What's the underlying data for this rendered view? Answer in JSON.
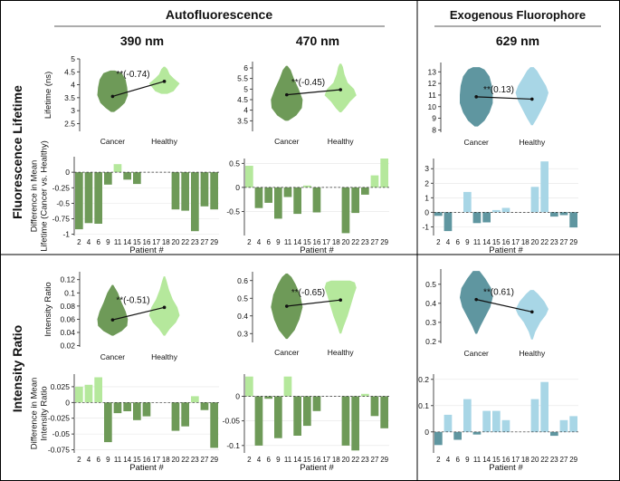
{
  "headers": {
    "auto": "Autofluorescence",
    "exo": "Exogenous Fluorophore",
    "wl390": "390 nm",
    "wl470": "470 nm",
    "wl629": "629 nm",
    "row1": "Fluorescence Lifetime",
    "row2": "Intensity Ratio"
  },
  "colors": {
    "green_dark": "#6e9a58",
    "green_light": "#b5e89c",
    "blue_dark": "#5f96a0",
    "blue_light": "#a8d6e6"
  },
  "chart_data": [
    {
      "id": "v390lt",
      "type": "violin",
      "ylabel": "Lifetime (ns)",
      "ylim": [
        2.2,
        5
      ],
      "yticks": [
        2.5,
        3,
        3.5,
        4,
        4.5,
        5
      ],
      "categories": [
        "Cancer",
        "Healthy"
      ],
      "means": [
        3.55,
        4.13
      ],
      "annotation": "**(-0.74)",
      "palette": "green",
      "shapes": [
        {
          "min": 2.95,
          "max": 4.55,
          "profile": [
            [
              2.95,
              0.1
            ],
            [
              3.1,
              0.45
            ],
            [
              3.3,
              0.8
            ],
            [
              3.6,
              1.0
            ],
            [
              3.9,
              0.95
            ],
            [
              4.2,
              0.85
            ],
            [
              4.45,
              0.6
            ],
            [
              4.55,
              0.15
            ]
          ]
        },
        {
          "min": 3.65,
          "max": 4.7,
          "profile": [
            [
              3.65,
              0.2
            ],
            [
              3.75,
              0.6
            ],
            [
              3.9,
              0.8
            ],
            [
              4.05,
              1.0
            ],
            [
              4.25,
              0.6
            ],
            [
              4.4,
              0.35
            ],
            [
              4.6,
              0.2
            ],
            [
              4.7,
              0.05
            ]
          ]
        }
      ]
    },
    {
      "id": "v470lt",
      "type": "violin",
      "ylabel": "",
      "ylim": [
        3,
        6.3
      ],
      "yticks": [
        3.5,
        4,
        4.5,
        5,
        5.5,
        6
      ],
      "categories": [
        "Cancer",
        "Healthy"
      ],
      "means": [
        4.73,
        4.97
      ],
      "annotation": "**(-0.45)",
      "palette": "green",
      "shapes": [
        {
          "min": 3.5,
          "max": 6.1,
          "profile": [
            [
              3.5,
              0.1
            ],
            [
              3.75,
              0.6
            ],
            [
              4.1,
              0.95
            ],
            [
              4.5,
              1.0
            ],
            [
              5.0,
              0.75
            ],
            [
              5.5,
              0.45
            ],
            [
              5.9,
              0.25
            ],
            [
              6.1,
              0.05
            ]
          ]
        },
        {
          "min": 3.9,
          "max": 6.2,
          "profile": [
            [
              3.9,
              0.05
            ],
            [
              4.1,
              0.3
            ],
            [
              4.4,
              0.6
            ],
            [
              4.7,
              1.0
            ],
            [
              5.0,
              0.85
            ],
            [
              5.3,
              0.45
            ],
            [
              5.7,
              0.25
            ],
            [
              6.05,
              0.15
            ],
            [
              6.2,
              0.05
            ]
          ]
        }
      ]
    },
    {
      "id": "v629lt",
      "type": "violin",
      "ylabel": "",
      "ylim": [
        7.8,
        13.8
      ],
      "yticks": [
        8,
        9,
        10,
        11,
        12,
        13
      ],
      "categories": [
        "Cancer",
        "Healthy"
      ],
      "means": [
        10.85,
        10.65
      ],
      "annotation": "**(0.13)",
      "palette": "blue",
      "shapes": [
        {
          "min": 8.3,
          "max": 13.4,
          "profile": [
            [
              8.3,
              0.1
            ],
            [
              8.8,
              0.5
            ],
            [
              9.5,
              0.8
            ],
            [
              10.3,
              1.0
            ],
            [
              11.0,
              1.0
            ],
            [
              11.8,
              0.95
            ],
            [
              12.6,
              0.8
            ],
            [
              13.2,
              0.5
            ],
            [
              13.4,
              0.2
            ]
          ]
        },
        {
          "min": 8.4,
          "max": 13.4,
          "profile": [
            [
              8.4,
              0.05
            ],
            [
              9.0,
              0.3
            ],
            [
              9.8,
              0.6
            ],
            [
              10.5,
              0.85
            ],
            [
              11.2,
              1.0
            ],
            [
              11.8,
              0.85
            ],
            [
              12.5,
              0.55
            ],
            [
              13.1,
              0.3
            ],
            [
              13.4,
              0.1
            ]
          ]
        }
      ]
    },
    {
      "id": "b390lt",
      "type": "bar",
      "ylabel": [
        "Difference in Mean",
        "Lifetime (Cancer vs. Healthy)"
      ],
      "ylim": [
        -1.02,
        0.25
      ],
      "yticks": [
        -1,
        -0.75,
        -0.5,
        -0.25,
        0
      ],
      "categories": [
        "2",
        "4",
        "6",
        "9",
        "11",
        "14",
        "15",
        "16",
        "17",
        "18",
        "20",
        "22",
        "23",
        "27",
        "29"
      ],
      "values": [
        -0.92,
        -0.82,
        -0.83,
        -0.2,
        0.13,
        -0.12,
        -0.19,
        0,
        0,
        0,
        -0.6,
        -0.62,
        -0.95,
        -0.55,
        -0.6
      ],
      "xlabel": "Patient #",
      "palette": "green"
    },
    {
      "id": "b470lt",
      "type": "bar",
      "ylabel": "",
      "ylim": [
        -1.0,
        0.6
      ],
      "yticks": [
        -0.5,
        0,
        0.5
      ],
      "categories": [
        "2",
        "4",
        "6",
        "9",
        "11",
        "14",
        "15",
        "16",
        "17",
        "18",
        "20",
        "22",
        "23",
        "27",
        "29"
      ],
      "values": [
        0.45,
        -0.43,
        -0.32,
        -0.65,
        -0.2,
        -0.55,
        0.04,
        -0.52,
        0,
        0,
        -0.95,
        -0.53,
        -0.15,
        0.25,
        0.6
      ],
      "xlabel": "Patient #",
      "palette": "green"
    },
    {
      "id": "b629lt",
      "type": "bar",
      "ylabel": "",
      "ylim": [
        -1.6,
        3.7
      ],
      "yticks": [
        -1,
        0,
        1,
        2,
        3
      ],
      "categories": [
        "2",
        "4",
        "6",
        "9",
        "11",
        "14",
        "15",
        "16",
        "17",
        "18",
        "20",
        "22",
        "23",
        "27",
        "29"
      ],
      "values": [
        -0.25,
        -1.3,
        0,
        1.4,
        -0.75,
        -0.7,
        0.15,
        0.3,
        0,
        0,
        1.75,
        3.5,
        -0.3,
        -0.2,
        -1.05
      ],
      "xlabel": "Patient #",
      "palette": "blue",
      "highlight_tick": "4"
    },
    {
      "id": "v390ir",
      "type": "violin",
      "ylabel": "Intensity Ratio",
      "ylim": [
        0.018,
        0.132
      ],
      "yticks": [
        0.02,
        0.04,
        0.06,
        0.08,
        0.1,
        0.12
      ],
      "categories": [
        "Cancer",
        "Healthy"
      ],
      "means": [
        0.059,
        0.078
      ],
      "annotation": "**(-0.51)",
      "palette": "green",
      "shapes": [
        {
          "min": 0.035,
          "max": 0.112,
          "profile": [
            [
              0.035,
              0.05
            ],
            [
              0.042,
              0.6
            ],
            [
              0.05,
              0.95
            ],
            [
              0.06,
              1.0
            ],
            [
              0.072,
              0.85
            ],
            [
              0.085,
              0.6
            ],
            [
              0.1,
              0.35
            ],
            [
              0.112,
              0.05
            ]
          ]
        },
        {
          "min": 0.035,
          "max": 0.125,
          "profile": [
            [
              0.035,
              0.05
            ],
            [
              0.045,
              0.35
            ],
            [
              0.055,
              0.75
            ],
            [
              0.066,
              1.0
            ],
            [
              0.078,
              0.85
            ],
            [
              0.09,
              0.55
            ],
            [
              0.105,
              0.3
            ],
            [
              0.118,
              0.15
            ],
            [
              0.125,
              0.05
            ]
          ]
        }
      ]
    },
    {
      "id": "v470ir",
      "type": "violin",
      "ylabel": "",
      "ylim": [
        0.25,
        0.65
      ],
      "yticks": [
        0.3,
        0.4,
        0.5,
        0.6
      ],
      "categories": [
        "Cancer",
        "Healthy"
      ],
      "means": [
        0.455,
        0.49
      ],
      "annotation": "**(-0.65)",
      "palette": "green",
      "shapes": [
        {
          "min": 0.27,
          "max": 0.64,
          "profile": [
            [
              0.27,
              0.05
            ],
            [
              0.32,
              0.5
            ],
            [
              0.38,
              0.8
            ],
            [
              0.45,
              1.0
            ],
            [
              0.52,
              0.85
            ],
            [
              0.58,
              0.55
            ],
            [
              0.62,
              0.3
            ],
            [
              0.64,
              0.05
            ]
          ]
        },
        {
          "min": 0.3,
          "max": 0.6,
          "profile": [
            [
              0.3,
              0.05
            ],
            [
              0.34,
              0.2
            ],
            [
              0.4,
              0.45
            ],
            [
              0.46,
              0.65
            ],
            [
              0.52,
              0.85
            ],
            [
              0.56,
              1.0
            ],
            [
              0.59,
              0.9
            ],
            [
              0.6,
              0.6
            ]
          ]
        }
      ]
    },
    {
      "id": "v629ir",
      "type": "violin",
      "ylabel": "",
      "ylim": [
        0.19,
        0.58
      ],
      "yticks": [
        0.2,
        0.3,
        0.4,
        0.5
      ],
      "categories": [
        "Cancer",
        "Healthy"
      ],
      "means": [
        0.42,
        0.355
      ],
      "annotation": "**(0.61)",
      "palette": "blue",
      "shapes": [
        {
          "min": 0.24,
          "max": 0.57,
          "profile": [
            [
              0.24,
              0.05
            ],
            [
              0.28,
              0.25
            ],
            [
              0.33,
              0.55
            ],
            [
              0.38,
              0.85
            ],
            [
              0.43,
              1.0
            ],
            [
              0.48,
              0.9
            ],
            [
              0.53,
              0.55
            ],
            [
              0.57,
              0.2
            ]
          ]
        },
        {
          "min": 0.21,
          "max": 0.47,
          "profile": [
            [
              0.21,
              0.05
            ],
            [
              0.25,
              0.2
            ],
            [
              0.3,
              0.5
            ],
            [
              0.34,
              0.85
            ],
            [
              0.37,
              1.0
            ],
            [
              0.41,
              0.75
            ],
            [
              0.45,
              0.35
            ],
            [
              0.47,
              0.1
            ]
          ]
        }
      ]
    },
    {
      "id": "b390ir",
      "type": "bar",
      "ylabel": [
        "Difference in Mean",
        "Intensity Ratio"
      ],
      "ylim": [
        -0.08,
        0.045
      ],
      "yticks": [
        -0.075,
        -0.05,
        -0.025,
        0,
        0.025
      ],
      "categories": [
        "2",
        "4",
        "6",
        "9",
        "11",
        "14",
        "15",
        "16",
        "17",
        "18",
        "20",
        "22",
        "23",
        "27",
        "29"
      ],
      "values": [
        0.025,
        0.028,
        0.04,
        -0.063,
        -0.017,
        -0.014,
        -0.028,
        -0.022,
        0,
        0,
        -0.045,
        -0.038,
        0.01,
        -0.012,
        -0.072
      ],
      "xlabel": "Patient #",
      "palette": "green"
    },
    {
      "id": "b470ir",
      "type": "bar",
      "ylabel": "",
      "ylim": [
        -0.115,
        0.045
      ],
      "yticks": [
        -0.1,
        -0.05,
        0
      ],
      "categories": [
        "2",
        "4",
        "6",
        "9",
        "11",
        "14",
        "15",
        "16",
        "17",
        "18",
        "20",
        "22",
        "23",
        "27",
        "29"
      ],
      "values": [
        0.04,
        -0.1,
        -0.005,
        -0.085,
        0.04,
        -0.08,
        -0.06,
        -0.03,
        0,
        0,
        -0.1,
        -0.11,
        0.005,
        -0.04,
        -0.065
      ],
      "xlabel": "Patient #",
      "palette": "green"
    },
    {
      "id": "b629ir",
      "type": "bar",
      "ylabel": "",
      "ylim": [
        -0.08,
        0.22
      ],
      "yticks": [
        0,
        0.1,
        0.2
      ],
      "categories": [
        "2",
        "4",
        "6",
        "9",
        "11",
        "14",
        "15",
        "16",
        "17",
        "18",
        "20",
        "22",
        "23",
        "27",
        "29"
      ],
      "values": [
        -0.05,
        0.065,
        -0.03,
        0.125,
        -0.01,
        0.08,
        0.08,
        0.045,
        0,
        0,
        0.125,
        0.19,
        -0.015,
        0.045,
        0.06
      ],
      "xlabel": "Patient #",
      "palette": "blue"
    }
  ]
}
